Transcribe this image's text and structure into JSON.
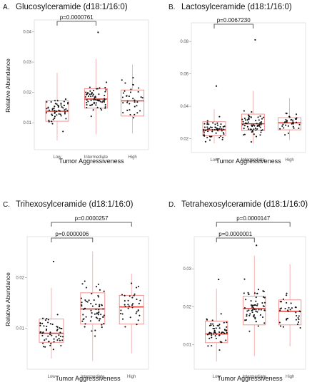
{
  "chart_data": [
    {
      "type": "box",
      "panel": "A.",
      "title": "Glucosylceramide (d18:1/16:0)",
      "xlabel": "Tumor Aggressiveness",
      "ylabel": "Relative Abundance",
      "categories": [
        "Low",
        "Intermediate",
        "High"
      ],
      "yticks": [
        0.01,
        0.02,
        0.03,
        0.04
      ],
      "ytick_labels": [
        "0.01",
        "0.02",
        "0.03",
        "0.04"
      ],
      "ylim": [
        0.003,
        0.042
      ],
      "boxes": [
        {
          "q1": 0.0105,
          "median": 0.0138,
          "q3": 0.0172,
          "whisker_low": 0.0042,
          "whisker_high": 0.0265,
          "n": 55
        },
        {
          "q1": 0.0148,
          "median": 0.0178,
          "q3": 0.0212,
          "whisker_low": 0.0062,
          "whisker_high": 0.031,
          "n": 65
        },
        {
          "q1": 0.0122,
          "median": 0.0172,
          "q3": 0.0208,
          "whisker_low": 0.0065,
          "whisker_high": 0.0292,
          "n": 35
        }
      ],
      "outliers": [
        {
          "category": "Intermediate",
          "value": 0.0398
        }
      ],
      "comparisons": [
        {
          "from": "Low",
          "to": "Intermediate",
          "label": "p=0.0000761"
        }
      ]
    },
    {
      "type": "box",
      "panel": "B.",
      "title": "Lactosylceramide (d18:1/16:0)",
      "xlabel": "Tumor Aggressiveness",
      "ylabel": "",
      "categories": [
        "Low",
        "Intermediate",
        "High"
      ],
      "yticks": [
        0.02,
        0.04,
        0.06,
        0.08
      ],
      "ytick_labels": [
        "0.02",
        "0.04",
        "0.06",
        "0.08"
      ],
      "ylim": [
        0.015,
        0.088
      ],
      "boxes": [
        {
          "q1": 0.0218,
          "median": 0.0255,
          "q3": 0.0305,
          "whisker_low": 0.0172,
          "whisker_high": 0.0382,
          "n": 55
        },
        {
          "q1": 0.025,
          "median": 0.0292,
          "q3": 0.0352,
          "whisker_low": 0.0172,
          "whisker_high": 0.0495,
          "n": 65
        },
        {
          "q1": 0.0255,
          "median": 0.0298,
          "q3": 0.033,
          "whisker_low": 0.0192,
          "whisker_high": 0.0452,
          "n": 35
        }
      ],
      "outliers": [
        {
          "category": "Low",
          "value": 0.0525
        },
        {
          "category": "Intermediate",
          "value": 0.081
        }
      ],
      "comparisons": [
        {
          "from": "Low",
          "to": "Intermediate",
          "label": "p=0.0067230"
        }
      ]
    },
    {
      "type": "box",
      "panel": "C.",
      "title": "Trihexosylceramide (d18:1/16:0)",
      "xlabel": "Tumor Aggressiveness",
      "ylabel": "Relative Abundance",
      "categories": [
        "Low",
        "Intermediate",
        "High"
      ],
      "yticks": [
        0.01,
        0.02
      ],
      "ytick_labels": [
        "0.01",
        "0.02"
      ],
      "ylim": [
        0.003,
        0.027
      ],
      "boxes": [
        {
          "q1": 0.0072,
          "median": 0.009,
          "q3": 0.0118,
          "whisker_low": 0.004,
          "whisker_high": 0.018,
          "n": 55
        },
        {
          "q1": 0.0108,
          "median": 0.0138,
          "q3": 0.017,
          "whisker_low": 0.0035,
          "whisker_high": 0.0252,
          "n": 65
        },
        {
          "q1": 0.0108,
          "median": 0.0142,
          "q3": 0.0165,
          "whisker_low": 0.005,
          "whisker_high": 0.0208,
          "n": 35
        }
      ],
      "outliers": [
        {
          "category": "Low",
          "value": 0.0232
        }
      ],
      "comparisons": [
        {
          "from": "Low",
          "to": "Intermediate",
          "label": "p=0.0000006"
        },
        {
          "from": "Low",
          "to": "High",
          "label": "p=0.0000257"
        }
      ]
    },
    {
      "type": "box",
      "panel": "D.",
      "title": "Tetrahexosylceramide (d18:1/16:0)",
      "xlabel": "Tumor Aggressiveness",
      "ylabel": "",
      "categories": [
        "Low",
        "Intermediate",
        "High"
      ],
      "yticks": [
        0.01,
        0.02,
        0.03
      ],
      "ytick_labels": [
        "0.01",
        "0.02",
        "0.03"
      ],
      "ylim": [
        0.005,
        0.037
      ],
      "boxes": [
        {
          "q1": 0.0105,
          "median": 0.0128,
          "q3": 0.0162,
          "whisker_low": 0.0055,
          "whisker_high": 0.0248,
          "n": 55
        },
        {
          "q1": 0.0152,
          "median": 0.0195,
          "q3": 0.0228,
          "whisker_low": 0.007,
          "whisker_high": 0.0335,
          "n": 65
        },
        {
          "q1": 0.0152,
          "median": 0.0188,
          "q3": 0.0218,
          "whisker_low": 0.0095,
          "whisker_high": 0.0312,
          "n": 35
        }
      ],
      "outliers": [
        {
          "category": "Low",
          "value": 0.0272
        },
        {
          "category": "Intermediate",
          "value": 0.0362
        }
      ],
      "comparisons": [
        {
          "from": "Low",
          "to": "Intermediate",
          "label": "p=0.0000001"
        },
        {
          "from": "Low",
          "to": "High",
          "label": "p=0.0000147"
        }
      ]
    }
  ],
  "colors": {
    "box": "#f08a8a",
    "median": "#d9302c",
    "whisker": "#f2a0a0",
    "points": "#111111",
    "bracket": "#333333",
    "panel_border": "#dddddd"
  }
}
